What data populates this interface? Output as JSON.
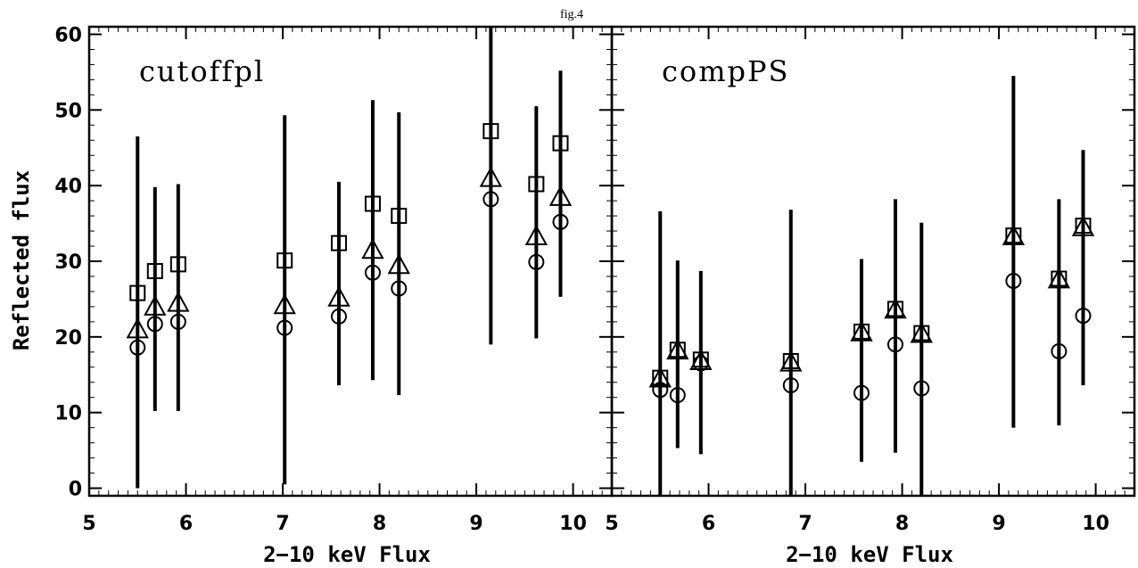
{
  "figure_title": "fig.4",
  "ylabel": "Reflected flux",
  "colors": {
    "ink": "#000000",
    "background": "#ffffff"
  },
  "marker_types": [
    "square",
    "triangle",
    "circle"
  ],
  "chart_data": [
    {
      "type": "scatter",
      "title": "cutoffpl",
      "xlabel": "2−10 keV Flux",
      "ylabel": "Reflected flux",
      "xlim": [
        5,
        10.4
      ],
      "ylim": [
        -1,
        61
      ],
      "xticks": [
        5,
        6,
        7,
        8,
        9,
        10
      ],
      "yticks": [
        0,
        10,
        20,
        30,
        40,
        50,
        60
      ],
      "x": [
        5.5,
        5.68,
        5.92,
        7.02,
        7.58,
        7.93,
        8.2,
        9.15,
        9.62,
        9.87
      ],
      "series": [
        {
          "marker": "square",
          "values": [
            25.8,
            28.7,
            29.6,
            30.1,
            32.4,
            37.6,
            36.0,
            47.2,
            40.2,
            45.6
          ]
        },
        {
          "marker": "triangle",
          "values": [
            21.0,
            24.0,
            24.5,
            24.2,
            25.2,
            31.5,
            29.5,
            41.0,
            33.3,
            38.5
          ]
        },
        {
          "marker": "circle",
          "values": [
            18.6,
            21.7,
            22.0,
            21.2,
            22.7,
            28.5,
            26.4,
            38.2,
            29.9,
            35.2
          ]
        }
      ],
      "error_bars": [
        [
          0,
          46.5
        ],
        [
          10.2,
          39.8
        ],
        [
          10.2,
          40.2
        ],
        [
          0.5,
          49.3
        ],
        [
          13.6,
          40.5
        ],
        [
          14.3,
          51.3
        ],
        [
          12.3,
          49.7
        ],
        [
          19.0,
          61
        ],
        [
          19.8,
          50.5
        ],
        [
          25.3,
          55.2
        ]
      ]
    },
    {
      "type": "scatter",
      "title": "compPS",
      "xlabel": "2−10 keV Flux",
      "xlim": [
        5,
        10.4
      ],
      "ylim": [
        -1,
        61
      ],
      "xticks": [
        5,
        6,
        7,
        8,
        9,
        10
      ],
      "yticks": [
        0,
        10,
        20,
        30,
        40,
        50,
        60
      ],
      "x": [
        5.5,
        5.68,
        5.92,
        6.85,
        7.58,
        7.93,
        8.2,
        9.15,
        9.62,
        9.87
      ],
      "series": [
        {
          "marker": "square",
          "values": [
            14.6,
            18.3,
            17.0,
            16.8,
            20.7,
            23.7,
            20.5,
            33.4,
            27.7,
            34.7
          ]
        },
        {
          "marker": "triangle",
          "values": [
            14.5,
            18.2,
            16.8,
            16.6,
            20.6,
            23.6,
            20.4,
            33.3,
            27.6,
            34.5
          ]
        },
        {
          "marker": "circle",
          "values": [
            13.0,
            12.3,
            16.5,
            13.6,
            12.6,
            19.0,
            13.2,
            27.4,
            18.1,
            22.8
          ]
        }
      ],
      "error_bars": [
        [
          -1,
          36.6
        ],
        [
          5.3,
          30.1
        ],
        [
          4.5,
          28.7
        ],
        [
          -1,
          36.8
        ],
        [
          3.5,
          30.3
        ],
        [
          4.7,
          38.2
        ],
        [
          -1,
          35.1
        ],
        [
          8.0,
          54.5
        ],
        [
          8.3,
          38.2
        ],
        [
          13.6,
          44.7
        ]
      ]
    }
  ]
}
